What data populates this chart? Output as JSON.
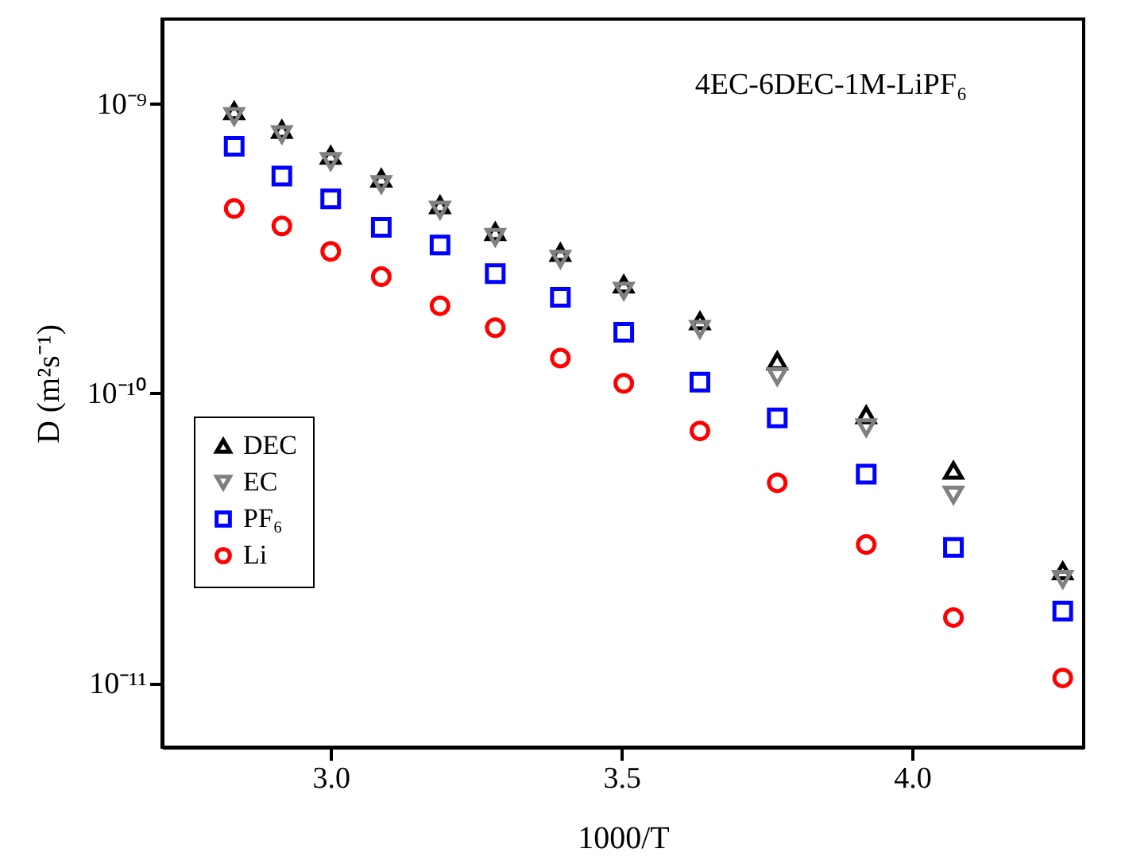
{
  "chart_data": {
    "type": "scatter",
    "xlabel": "1000/T",
    "ylabel": "D (m²s⁻¹)",
    "x": [
      2.834,
      2.916,
      3.0,
      3.087,
      3.188,
      3.283,
      3.395,
      3.504,
      3.635,
      3.768,
      3.921,
      4.071,
      4.259
    ],
    "series": [
      {
        "name": "DEC",
        "color": "#000000",
        "marker": "triangle-up",
        "values": [
          9.4e-10,
          8.1e-10,
          6.6e-10,
          5.5e-10,
          4.45e-10,
          3.6e-10,
          3.05e-10,
          2.37e-10,
          1.77e-10,
          1.29e-10,
          8.4e-11,
          5.4e-11,
          2.43e-11
        ]
      },
      {
        "name": "EC",
        "color": "#808080",
        "marker": "triangle-down",
        "values": [
          9e-10,
          7.8e-10,
          6.3e-10,
          5.25e-10,
          4.28e-10,
          3.45e-10,
          2.9e-10,
          2.25e-10,
          1.66e-10,
          1.14e-10,
          7.6e-11,
          4.45e-11,
          2.28e-11
        ]
      },
      {
        "name": "PF₆",
        "color": "#0000ff",
        "marker": "square",
        "values": [
          7.1e-10,
          5.6e-10,
          4.67e-10,
          3.73e-10,
          3.24e-10,
          2.58e-10,
          2.14e-10,
          1.62e-10,
          1.09e-10,
          8.2e-11,
          5.25e-11,
          2.93e-11,
          1.77e-11
        ]
      },
      {
        "name": "Li",
        "color": "#ff0000",
        "marker": "circle",
        "values": [
          4.33e-10,
          3.77e-10,
          3.08e-10,
          2.52e-10,
          2e-10,
          1.68e-10,
          1.32e-10,
          1.08e-10,
          7.4e-11,
          4.9e-11,
          3e-11,
          1.68e-11,
          1.04e-11
        ]
      }
    ],
    "log": "y",
    "xlim": [
      2.71,
      4.295
    ],
    "xticks": [
      {
        "value": 3,
        "label": "3.0"
      },
      3.5,
      {
        "value": 4,
        "label": "4.0"
      }
    ],
    "ylim": [
      6e-12,
      1.95e-09
    ],
    "yticks": [
      {
        "value": 1e-11,
        "label": "10⁻¹¹"
      },
      {
        "value": 1e-10,
        "label": "10⁻¹⁰"
      },
      {
        "value": 1e-09,
        "label": "10⁻⁹"
      }
    ],
    "annotations": [
      "4EC-6DEC-1M-LiPF₆"
    ],
    "legend": "left",
    "grid": false
  }
}
